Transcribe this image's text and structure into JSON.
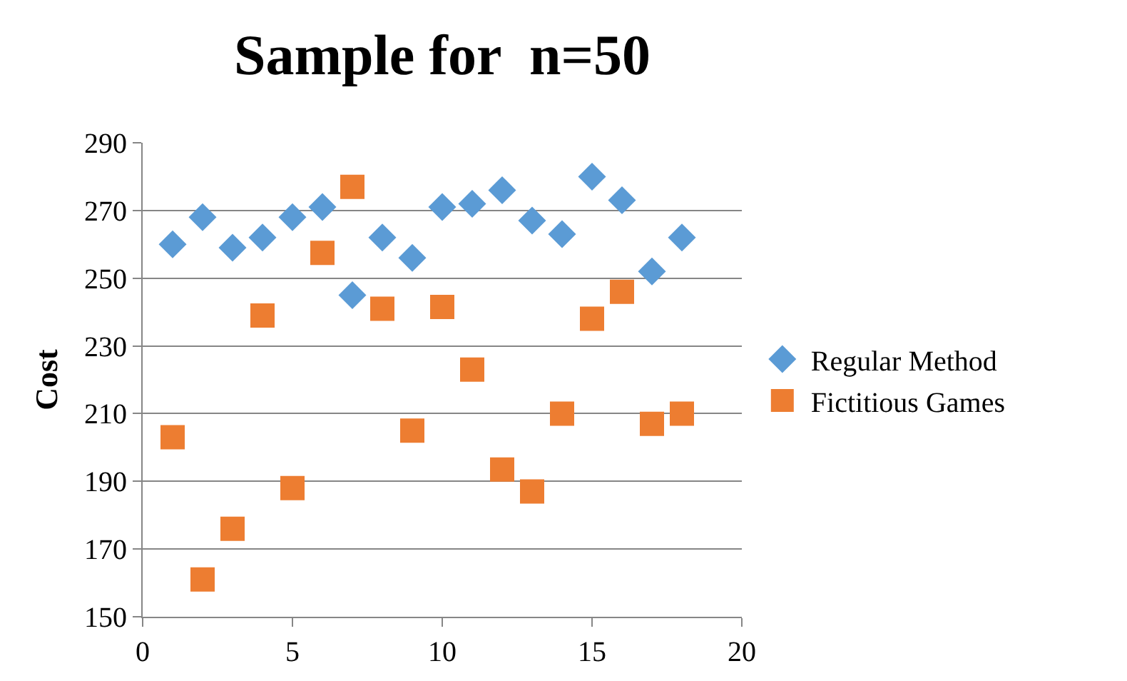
{
  "chart_data": {
    "type": "scatter",
    "title": "Sample for  n=50",
    "ylabel": "Cost",
    "x": [
      1,
      2,
      3,
      4,
      5,
      6,
      7,
      8,
      9,
      10,
      11,
      12,
      13,
      14,
      15,
      16,
      17,
      18
    ],
    "series": [
      {
        "name": "Regular Method",
        "color": "#5b9bd5",
        "marker": "diamond",
        "values": [
          260,
          268,
          259,
          262,
          268,
          271,
          245,
          262,
          256,
          271,
          272,
          276,
          267,
          263,
          280,
          273,
          252,
          262
        ]
      },
      {
        "name": "Fictitious Games",
        "color": "#ed7d31",
        "marker": "square",
        "values": [
          203,
          161,
          176,
          239,
          188,
          257.5,
          277,
          241,
          205,
          241.5,
          223,
          193.5,
          187,
          210,
          238,
          246,
          207,
          210
        ]
      }
    ],
    "xlim": [
      0,
      20
    ],
    "xticks": [
      0,
      5,
      10,
      15,
      20
    ],
    "ylim": [
      150,
      290
    ],
    "yticks": [
      150,
      170,
      190,
      210,
      230,
      250,
      270,
      290
    ],
    "grid": "y",
    "legend": "right"
  }
}
